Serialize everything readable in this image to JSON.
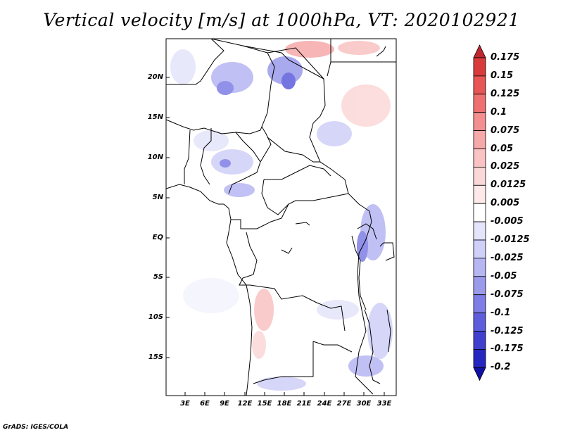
{
  "title": "Vertical velocity [m/s] at 1000hPa, VT: 2020102921",
  "lat_labels": [
    "20N",
    "15N",
    "10N",
    "5N",
    "EQ",
    "5S",
    "10S",
    "15S"
  ],
  "lon_labels": [
    "3E",
    "6E",
    "9E",
    "12E",
    "15E",
    "18E",
    "21E",
    "24E",
    "27E",
    "30E",
    "33E"
  ],
  "colorbar": {
    "labels": [
      "0.175",
      "0.15",
      "0.125",
      "0.1",
      "0.075",
      "0.05",
      "0.025",
      "0.0125",
      "0.005",
      "-0.005",
      "-0.0125",
      "-0.025",
      "-0.05",
      "-0.075",
      "-0.1",
      "-0.125",
      "-0.175",
      "-0.2"
    ],
    "colors": [
      "#c0272d",
      "#d93b3b",
      "#e85555",
      "#ee7070",
      "#f38f8f",
      "#f6a9a9",
      "#f9c3c3",
      "#fbd8d8",
      "#fde9e9",
      "#ffffff",
      "#e4e4fb",
      "#cfcff8",
      "#b6b6f3",
      "#9b9bec",
      "#7e7ee6",
      "#5e5edc",
      "#4040cf",
      "#2525c0",
      "#1010a8"
    ]
  },
  "credit": "GrADS: IGES/COLA"
}
